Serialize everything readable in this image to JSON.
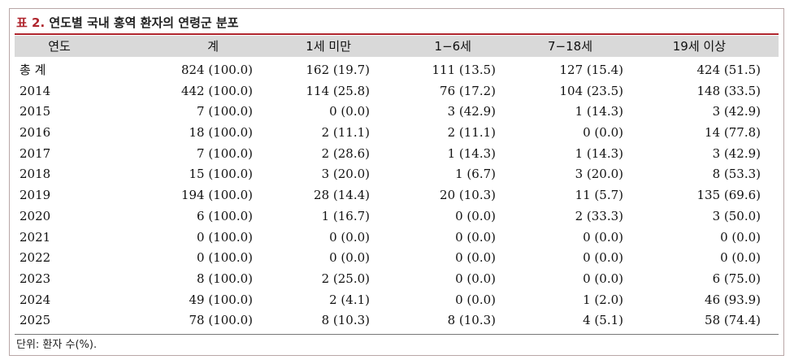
{
  "title": {
    "label": "표 2.",
    "text": "연도별 국내 홍역 환자의 연령군 분포"
  },
  "columns": [
    "연도",
    "계",
    "1세 미만",
    "1−6세",
    "7−18세",
    "19세 이상"
  ],
  "rows": [
    [
      "총 계",
      "824 (100.0)",
      "162 (19.7)",
      "111 (13.5)",
      "127 (15.4)",
      "424 (51.5)"
    ],
    [
      "2014",
      "442 (100.0)",
      "114 (25.8)",
      "76 (17.2)",
      "104 (23.5)",
      "148 (33.5)"
    ],
    [
      "2015",
      "7 (100.0)",
      "0 (0.0)",
      "3 (42.9)",
      "1 (14.3)",
      "3 (42.9)"
    ],
    [
      "2016",
      "18 (100.0)",
      "2 (11.1)",
      "2 (11.1)",
      "0 (0.0)",
      "14 (77.8)"
    ],
    [
      "2017",
      "7 (100.0)",
      "2 (28.6)",
      "1 (14.3)",
      "1 (14.3)",
      "3 (42.9)"
    ],
    [
      "2018",
      "15 (100.0)",
      "3 (20.0)",
      "1 (6.7)",
      "3 (20.0)",
      "8 (53.3)"
    ],
    [
      "2019",
      "194 (100.0)",
      "28 (14.4)",
      "20 (10.3)",
      "11 (5.7)",
      "135 (69.6)"
    ],
    [
      "2020",
      "6 (100.0)",
      "1 (16.7)",
      "0 (0.0)",
      "2 (33.3)",
      "3 (50.0)"
    ],
    [
      "2021",
      "0 (100.0)",
      "0 (0.0)",
      "0 (0.0)",
      "0 (0.0)",
      "0 (0.0)"
    ],
    [
      "2022",
      "0 (100.0)",
      "0 (0.0)",
      "0 (0.0)",
      "0 (0.0)",
      "0 (0.0)"
    ],
    [
      "2023",
      "8 (100.0)",
      "2 (25.0)",
      "0 (0.0)",
      "0 (0.0)",
      "6 (75.0)"
    ],
    [
      "2024",
      "49 (100.0)",
      "2 (4.1)",
      "0 (0.0)",
      "1 (2.0)",
      "46 (93.9)"
    ],
    [
      "2025",
      "78 (100.0)",
      "8 (10.3)",
      "8 (10.3)",
      "4 (5.1)",
      "58 (74.4)"
    ]
  ],
  "footnote": "단위: 환자 수(%).",
  "colors": {
    "accent": "#b0262e",
    "header_bg": "#d9d9d9",
    "border": "#b9a6a6"
  }
}
